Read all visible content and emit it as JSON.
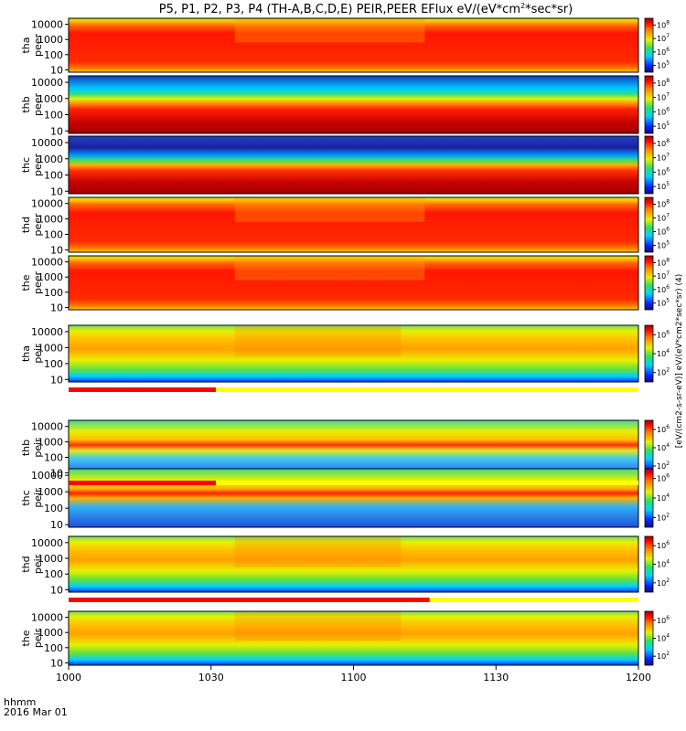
{
  "chart_data": {
    "type": "heatmap",
    "title": "P5, P1, P2, P3, P4 (TH-A,B,C,D,E) PEIR,PEER EFlux eV/(eV*cm2*sec*sr)",
    "title_parts": {
      "main": "P5, P1, P2, P3, P4 (TH-A,B,C,D,E) PEIR,PEER EFlux eV/(eV*cm",
      "sup": "2",
      "tail": "*sec*sr)"
    },
    "x_ticks": [
      "1000",
      "1030",
      "1100",
      "1130",
      "1200"
    ],
    "x_range_minutes": [
      0,
      120
    ],
    "xlabel_lines": [
      "hhmm",
      "2016 Mar 01"
    ],
    "y_ticks": [
      "10",
      "100",
      "1000",
      "10000"
    ],
    "y_scale": "log",
    "y_range_eV": [
      7,
      25000
    ],
    "colorbar_label": "[eV/(cm2-s-sr-eV)] eV/(eV*cm2*sec*sr) (4)",
    "colorbar_ticks_electron": [
      "10^5",
      "10^6",
      "10^7",
      "10^8"
    ],
    "colorbar_ticks_ion": [
      "10^2",
      "10^4",
      "10^6"
    ],
    "panels": [
      {
        "probe": "tha",
        "species": "peer",
        "label_lines": [
          "tha",
          "peer"
        ]
      },
      {
        "probe": "thb",
        "species": "peer",
        "label_lines": [
          "thb",
          "peer"
        ]
      },
      {
        "probe": "thc",
        "species": "peer",
        "label_lines": [
          "thc",
          "peer"
        ]
      },
      {
        "probe": "thd",
        "species": "peer",
        "label_lines": [
          "thd",
          "peer"
        ]
      },
      {
        "probe": "the",
        "species": "peer",
        "label_lines": [
          "the",
          "peer"
        ]
      },
      {
        "probe": "tha",
        "species": "peir",
        "label_lines": [
          "tha",
          "peir"
        ]
      },
      {
        "probe": "thb",
        "species": "peir",
        "label_lines": [
          "thb",
          "peir"
        ]
      },
      {
        "probe": "thc",
        "species": "peir",
        "label_lines": [
          "thc",
          "peir"
        ]
      },
      {
        "probe": "thd",
        "species": "peir",
        "label_lines": [
          "thd",
          "peir"
        ]
      },
      {
        "probe": "the",
        "species": "peir",
        "label_lines": [
          "the",
          "peir"
        ]
      }
    ],
    "mode_bars_minutes": [
      {
        "after_panel": 5,
        "red_end": 31
      },
      {
        "after_panel": 6,
        "red_end": 31
      },
      {
        "after_panel": 8,
        "red_end": 76
      }
    ]
  }
}
